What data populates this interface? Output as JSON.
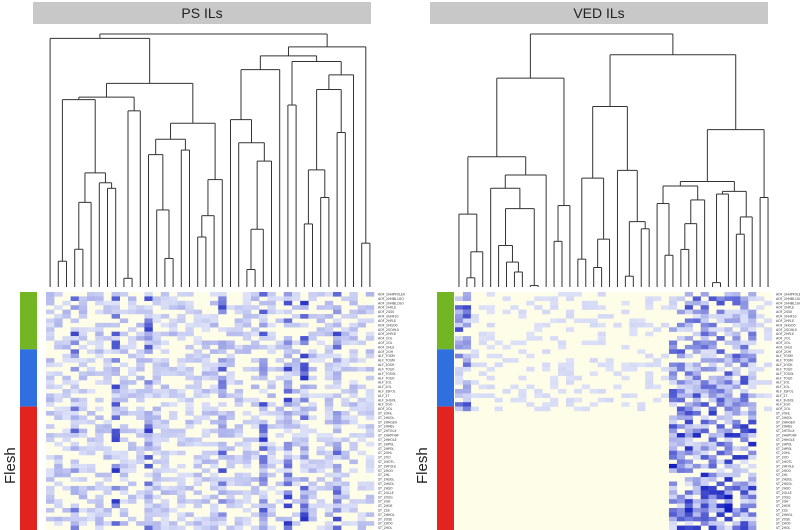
{
  "panels": [
    {
      "title": "PS ILs",
      "annotation": "Flesh",
      "sidebar_colors": [
        "#72b623",
        "#2f6fe0",
        "#e1241d"
      ],
      "row_labels": [
        "AOF_2HHPFOLEX",
        "AOF_2HHBL1GO",
        "AOF_2HHBL1GO",
        "AOF_2HFLE",
        "AOF_2SS0",
        "AOF_2HHFL0",
        "AOF_2HFLE",
        "AOF_2HGO0",
        "AOF_2SOHL0",
        "AOF_2HFLE",
        "AOF_2OL",
        "AOF_2OL",
        "AOF_2HL0",
        "AOF_2OH",
        "ALF_TOSM",
        "ALF_TOSM",
        "ALF_2OSH",
        "ALF_TOSO",
        "ALF_TOSOL",
        "ALF_TOSO",
        "ALF_2OL",
        "ALF_2OL",
        "ALF_3SFOL",
        "ALF_2T",
        "ALF_2HSOL",
        "ALF_2GO",
        "AOF_2OL",
        "ST_2OHL",
        "ST_2HSOL",
        "ST_2HHGEX",
        "ST_2HHBL",
        "ST_2HTOLX",
        "ST_2HHPOHF",
        "ST_2HHOLE",
        "ST_2HPOL",
        "ST_2HPOL",
        "ST_2OHL",
        "ST_2OO",
        "ST_2HOTL",
        "ST_2HFOLE",
        "ST_2HOO",
        "ST_2HL",
        "ST_2HSGL",
        "ST_2HSOL",
        "ST_2HSO",
        "ST_2OLLE",
        "ST_2OSG",
        "ST_2GH",
        "ST_2HOE",
        "ST_2SS",
        "ST_2HHOL",
        "ST_2OSE",
        "ST_2HO0",
        "ST_2HOL"
      ]
    },
    {
      "title": "VED ILs",
      "annotation": "Flesh",
      "sidebar_colors": [
        "#72b623",
        "#2f6fe0",
        "#e1241d"
      ],
      "row_labels": [
        "AOF_2HHPFOLEX",
        "AOF_2HHBL1GO",
        "AOF_2HHBL1GO",
        "AOF_2HFLE",
        "AOF_2SS0",
        "AOF_2HHFL0",
        "AOF_2HFLE",
        "AOF_2HGO0",
        "AOF_2SOHL0",
        "AOF_2HFLE",
        "AOF_2OL",
        "AOF_2OL",
        "AOF_2HL0",
        "AOF_2OH",
        "ALF_TOSM",
        "ALF_TOSM",
        "ALF_2OSH",
        "ALF_TOSO",
        "ALF_TOSOL",
        "ALF_TOSO",
        "ALF_2OL",
        "ALF_2OL",
        "ALF_3SFOL",
        "ALF_2T",
        "ALF_2HSOL",
        "ALF_2GO",
        "AOF_2OL",
        "ST_2OHL",
        "ST_2HSOL",
        "ST_2HHGEX",
        "ST_2HHBL",
        "ST_2HTOLX",
        "ST_2HHPOHF",
        "ST_2HHOLE",
        "ST_2HPOL",
        "ST_2HPOL",
        "ST_2OHL",
        "ST_2OO",
        "ST_2HOTL",
        "ST_2HFOLE",
        "ST_2HOO",
        "ST_2HL",
        "ST_2HSGL",
        "ST_2HSOL",
        "ST_2HSO",
        "ST_2OLLE",
        "ST_2OSG",
        "ST_2GH",
        "ST_2HOE",
        "ST_2SS",
        "ST_2HHOL",
        "ST_2OSE",
        "ST_2HO0",
        "ST_2HOL"
      ]
    }
  ],
  "colors": {
    "heat_low": "#fefde8",
    "heat_high": "#0f1bc0",
    "tree": "#333333",
    "title_bg": "#c8c8c8"
  }
}
